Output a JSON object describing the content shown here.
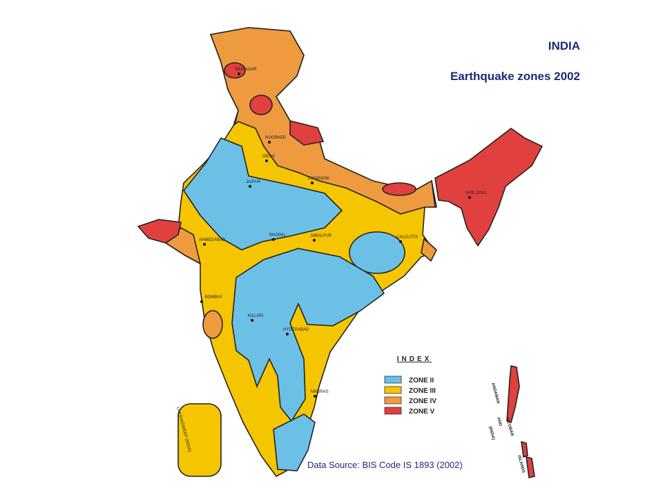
{
  "header": {
    "title": "INDIA",
    "subtitle": "Earthquake zones 2002"
  },
  "cities": [
    "SRINAGAR",
    "ROORKEE",
    "DELHI",
    "JAIPUR",
    "LUCKNOW",
    "SHILLONG",
    "BHOPAL",
    "JABALPUR",
    "CALCUTTA",
    "AHMEDABAD",
    "BOMBAY",
    "KILLARI",
    "HYDERABAD",
    "MADRAS"
  ],
  "legend": {
    "title": "INDEX",
    "items": [
      {
        "label": "ZONE II",
        "color": "#6cc0e6"
      },
      {
        "label": "ZONE III",
        "color": "#f5c500"
      },
      {
        "label": "ZONE IV",
        "color": "#ee9b3f"
      },
      {
        "label": "ZONE V",
        "color": "#e0403e"
      }
    ]
  },
  "islands": {
    "lakshadweep": "LAKSHADWEEP (INDIA)",
    "andaman": [
      "ANDAMAN",
      "AND",
      "NICOBAR",
      "(INDIA)",
      "ISLANDS"
    ]
  },
  "source": "Data Source: BIS Code IS 1893 (2002)"
}
